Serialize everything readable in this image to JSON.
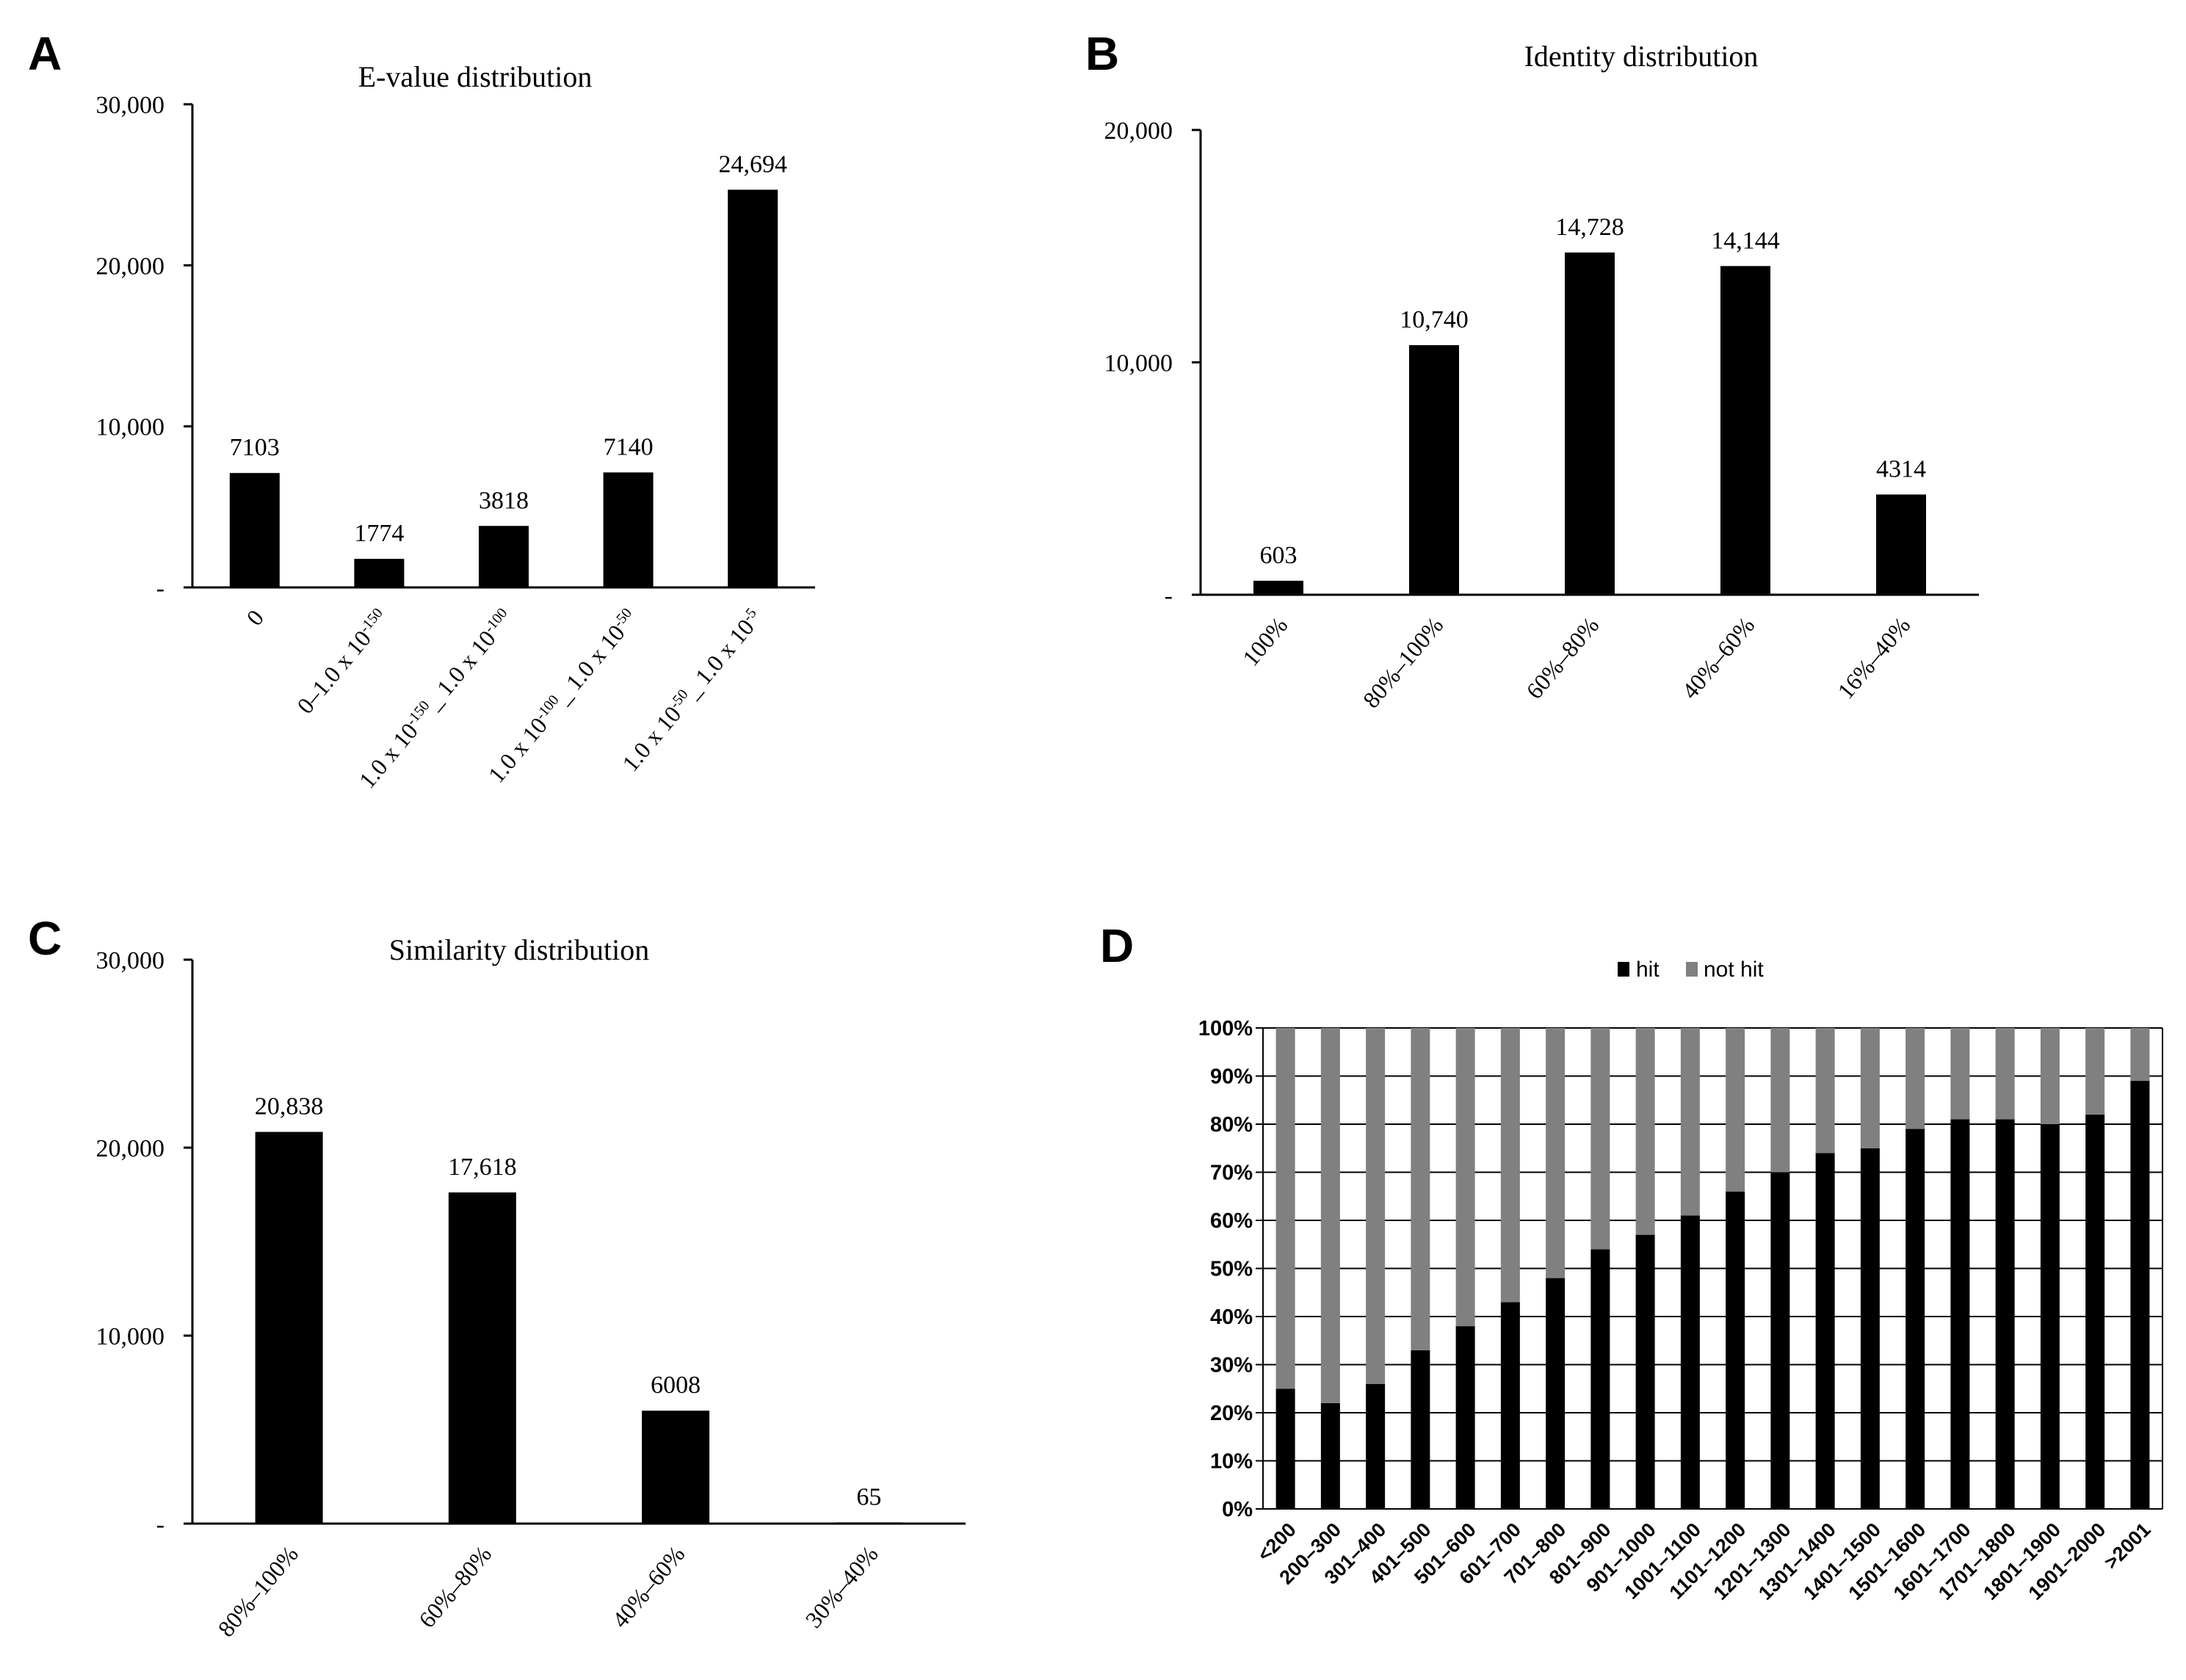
{
  "figure": {
    "colors": {
      "bar": "#000000",
      "not_hit": "#808080",
      "grid": "#000000",
      "text": "#000000"
    }
  },
  "chart_data": [
    {
      "panel": "A",
      "type": "bar",
      "title": "E-value distribution",
      "categories": [
        "0",
        "0–1.0 x 10-150",
        "1.0 x 10-150_1.0 x 10-100",
        "1.0 x 10-100_1.0 x 10-50",
        "1.0 x 10-50_1.0 x 10-5"
      ],
      "category_parts": [
        [
          {
            "t": "0"
          }
        ],
        [
          {
            "t": "0–1.0 x 10"
          },
          {
            "t": "-150",
            "sup": true
          }
        ],
        [
          {
            "t": "1.0 x 10"
          },
          {
            "t": "-150",
            "sup": true
          },
          {
            "t": "_ 1.0 x 10"
          },
          {
            "t": "-100",
            "sup": true
          }
        ],
        [
          {
            "t": "1.0 x 10"
          },
          {
            "t": "-100",
            "sup": true
          },
          {
            "t": "_ 1.0 x 10"
          },
          {
            "t": "-50",
            "sup": true
          }
        ],
        [
          {
            "t": "1.0 x 10"
          },
          {
            "t": "-50",
            "sup": true
          },
          {
            "t": "_ 1.0 x 10"
          },
          {
            "t": "-5",
            "sup": true
          }
        ]
      ],
      "values": [
        7103,
        1774,
        3818,
        7140,
        24694
      ],
      "data_labels": [
        "7103",
        "1774",
        "3818",
        "7140",
        "24,694"
      ],
      "ylim": [
        0,
        30000
      ],
      "yticks": [
        0,
        10000,
        20000,
        30000
      ],
      "ytick_labels": [
        "-",
        "10,000",
        "20,000",
        "30,000"
      ],
      "xlabel": "",
      "ylabel": ""
    },
    {
      "panel": "B",
      "type": "bar",
      "title": "Identity distribution",
      "categories": [
        "100%",
        "80%–100%",
        "60%–80%",
        "40%–60%",
        "16%–40%"
      ],
      "values": [
        603,
        10740,
        14728,
        14144,
        4314
      ],
      "data_labels": [
        "603",
        "10,740",
        "14,728",
        "14,144",
        "4314"
      ],
      "ylim": [
        0,
        20000
      ],
      "yticks": [
        0,
        10000,
        20000
      ],
      "ytick_labels": [
        "-",
        "10,000",
        "20,000"
      ],
      "xlabel": "",
      "ylabel": ""
    },
    {
      "panel": "C",
      "type": "bar",
      "title": "Similarity distribution",
      "categories": [
        "80%–100%",
        "60%–80%",
        "40%–60%",
        "30%–40%"
      ],
      "values": [
        20838,
        17618,
        6008,
        65
      ],
      "data_labels": [
        "20,838",
        "17,618",
        "6008",
        "65"
      ],
      "ylim": [
        0,
        30000
      ],
      "yticks": [
        0,
        10000,
        20000,
        30000
      ],
      "ytick_labels": [
        "-",
        "10,000",
        "20,000",
        "30,000"
      ],
      "xlabel": "",
      "ylabel": ""
    },
    {
      "panel": "D",
      "type": "bar",
      "stacked": true,
      "title": "",
      "legend": [
        "hit",
        "not hit"
      ],
      "categories": [
        "<200",
        "200–300",
        "301–400",
        "401–500",
        "501–600",
        "601–700",
        "701–800",
        "801–900",
        "901–1000",
        "1001–1100",
        "1101–1200",
        "1201–1300",
        "1301–1400",
        "1401–1500",
        "1501–1600",
        "1601–1700",
        "1701–1800",
        "1801–1900",
        "1901–2000",
        ">2001"
      ],
      "series": [
        {
          "name": "hit",
          "values": [
            25,
            22,
            26,
            33,
            38,
            43,
            48,
            54,
            57,
            61,
            66,
            70,
            74,
            75,
            79,
            81,
            81,
            80,
            82,
            89
          ]
        },
        {
          "name": "not hit",
          "values": [
            75,
            78,
            74,
            67,
            62,
            57,
            52,
            46,
            43,
            39,
            34,
            30,
            26,
            25,
            21,
            19,
            19,
            20,
            18,
            11
          ]
        }
      ],
      "ylim": [
        0,
        100
      ],
      "yticks": [
        0,
        10,
        20,
        30,
        40,
        50,
        60,
        70,
        80,
        90,
        100
      ],
      "ytick_labels": [
        "0%",
        "10%",
        "20%",
        "30%",
        "40%",
        "50%",
        "60%",
        "70%",
        "80%",
        "90%",
        "100%"
      ],
      "xlabel": "",
      "ylabel": ""
    }
  ]
}
